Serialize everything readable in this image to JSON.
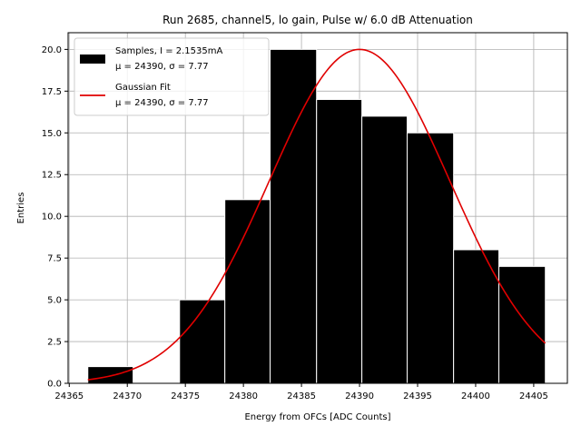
{
  "chart_data": {
    "type": "bar",
    "title": "Run 2685, channel5, lo gain, Pulse w/ 6.0 dB Attenuation",
    "xlabel": "Energy from OFCs [ADC Counts]",
    "ylabel": "Entries",
    "xlim": [
      24364.9,
      24407.9
    ],
    "ylim": [
      0,
      21
    ],
    "xticks": [
      24365,
      24370,
      24375,
      24380,
      24385,
      24390,
      24395,
      24400,
      24405
    ],
    "xtick_labels": [
      "24365",
      "24370",
      "24375",
      "24380",
      "24385",
      "24390",
      "24395",
      "24400",
      "24405"
    ],
    "yticks": [
      0,
      2.5,
      5,
      7.5,
      10,
      12.5,
      15,
      17.5,
      20
    ],
    "ytick_labels": [
      "0.0",
      "2.5",
      "5.0",
      "7.5",
      "10.0",
      "12.5",
      "15.0",
      "17.5",
      "20.0"
    ],
    "grid": true,
    "legend_position": "top-left",
    "bins": [
      {
        "x0": 24366.6,
        "x1": 24370.5,
        "count": 1
      },
      {
        "x0": 24370.5,
        "x1": 24374.5,
        "count": 0
      },
      {
        "x0": 24374.5,
        "x1": 24378.4,
        "count": 5
      },
      {
        "x0": 24378.4,
        "x1": 24382.3,
        "count": 11
      },
      {
        "x0": 24382.3,
        "x1": 24386.3,
        "count": 20
      },
      {
        "x0": 24386.3,
        "x1": 24390.2,
        "count": 17
      },
      {
        "x0": 24390.2,
        "x1": 24394.1,
        "count": 16
      },
      {
        "x0": 24394.1,
        "x1": 24398.1,
        "count": 15
      },
      {
        "x0": 24398.1,
        "x1": 24402.0,
        "count": 8
      },
      {
        "x0": 24402.0,
        "x1": 24406.0,
        "count": 7
      }
    ],
    "fit": {
      "mu": 24390,
      "sigma": 7.77,
      "amplitude": 20,
      "x_range": [
        24366.6,
        24406.0
      ]
    },
    "legend": [
      {
        "label_line1": "Samples, I = 2.1535mA",
        "label_line2": "μ = 24390, σ = 7.77",
        "color": "#000000"
      },
      {
        "label_line1": "Gaussian Fit",
        "label_line2": "μ = 24390, σ = 7.77",
        "color": "#e00000"
      }
    ],
    "colors": {
      "bars": "#000000",
      "bar_edge": "#ffffff",
      "fit": "#e00000",
      "grid": "#b0b0b0"
    }
  }
}
